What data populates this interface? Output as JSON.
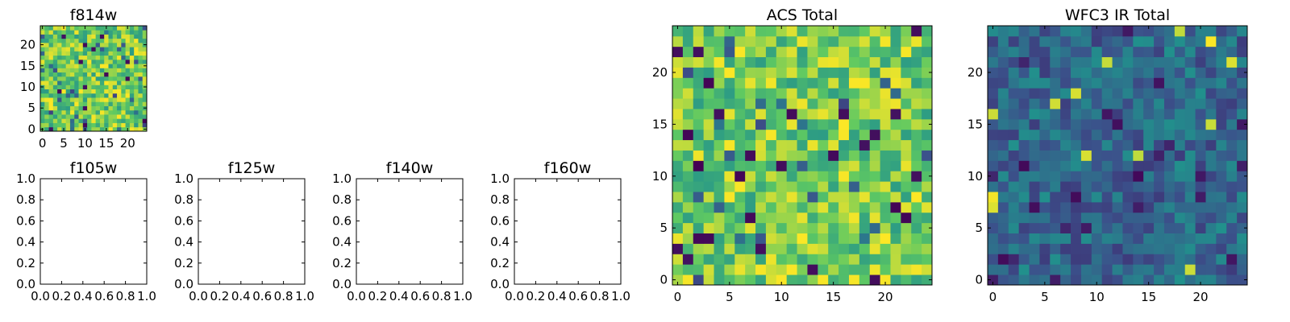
{
  "chart_data": [
    {
      "type": "heatmap",
      "title": "f814w",
      "grid_size": [
        25,
        25
      ],
      "colormap": "viridis",
      "xlim": [
        -0.5,
        24.5
      ],
      "ylim": [
        -0.5,
        24.5
      ],
      "xticks": [
        0,
        5,
        10,
        15,
        20
      ],
      "yticks": [
        0,
        5,
        10,
        15,
        20
      ],
      "seed": 814,
      "value_range": [
        0,
        1
      ],
      "dominant": "high (green-yellow)"
    },
    {
      "type": "heatmap",
      "title": "f105w",
      "empty": true,
      "xlim": [
        0,
        1
      ],
      "ylim": [
        0,
        1
      ],
      "xticks": [
        "0.0",
        "0.2",
        "0.4",
        "0.6",
        "0.8",
        "1.0"
      ],
      "yticks": [
        "0.0",
        "0.2",
        "0.4",
        "0.6",
        "0.8",
        "1.0"
      ]
    },
    {
      "type": "heatmap",
      "title": "f125w",
      "empty": true,
      "xlim": [
        0,
        1
      ],
      "ylim": [
        0,
        1
      ],
      "xticks": [
        "0.0",
        "0.2",
        "0.4",
        "0.6",
        "0.8",
        "1.0"
      ],
      "yticks": [
        "0.0",
        "0.2",
        "0.4",
        "0.6",
        "0.8",
        "1.0"
      ]
    },
    {
      "type": "heatmap",
      "title": "f140w",
      "empty": true,
      "xlim": [
        0,
        1
      ],
      "ylim": [
        0,
        1
      ],
      "xticks": [
        "0.0",
        "0.2",
        "0.4",
        "0.6",
        "0.8",
        "1.0"
      ],
      "yticks": [
        "0.0",
        "0.2",
        "0.4",
        "0.6",
        "0.8",
        "1.0"
      ]
    },
    {
      "type": "heatmap",
      "title": "f160w",
      "empty": true,
      "xlim": [
        0,
        1
      ],
      "ylim": [
        0,
        1
      ],
      "xticks": [
        "0.0",
        "0.2",
        "0.4",
        "0.6",
        "0.8",
        "1.0"
      ],
      "yticks": [
        "0.0",
        "0.2",
        "0.4",
        "0.6",
        "0.8",
        "1.0"
      ]
    },
    {
      "type": "heatmap",
      "title": "ACS Total",
      "grid_size": [
        25,
        25
      ],
      "colormap": "viridis",
      "xlim": [
        -0.5,
        24.5
      ],
      "ylim": [
        -0.5,
        24.5
      ],
      "xticks": [
        0,
        5,
        10,
        15,
        20
      ],
      "yticks": [
        0,
        5,
        10,
        15,
        20
      ],
      "seed": 1234,
      "value_range": [
        0,
        1
      ],
      "dominant": "high (green-yellow)"
    },
    {
      "type": "heatmap",
      "title": "WFC3 IR Total",
      "grid_size": [
        25,
        25
      ],
      "colormap": "viridis",
      "xlim": [
        -0.5,
        24.5
      ],
      "ylim": [
        -0.5,
        24.5
      ],
      "xticks": [
        0,
        5,
        10,
        15,
        20
      ],
      "yticks": [
        0,
        5,
        10,
        15,
        20
      ],
      "seed": 4321,
      "value_range": [
        0,
        1
      ],
      "dominant": "low (blue-teal)"
    }
  ],
  "colors": {
    "colormap_stops": [
      "#440154",
      "#3b528b",
      "#21918c",
      "#5ec962",
      "#fde725"
    ],
    "axes": "#000000",
    "background": "#ffffff"
  }
}
